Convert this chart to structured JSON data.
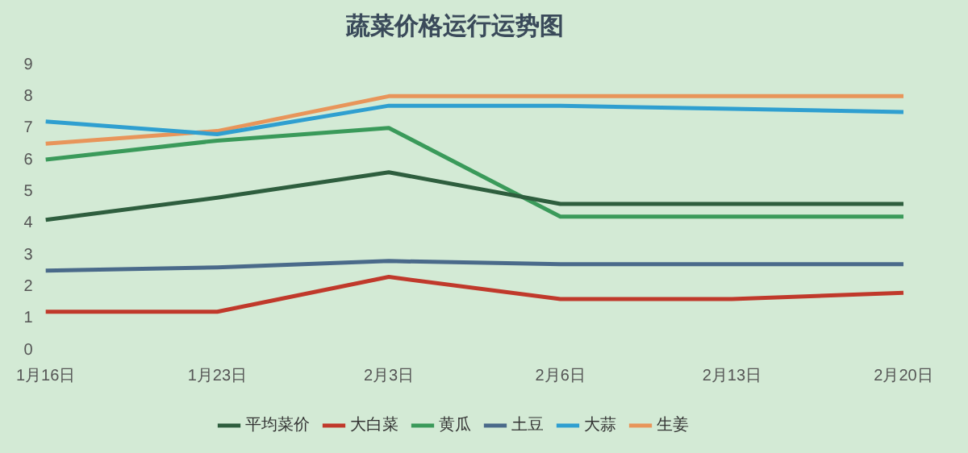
{
  "chart_data": {
    "type": "line",
    "title": "蔬菜价格运行运势图",
    "categories": [
      "1月16日",
      "1月23日",
      "2月3日",
      "2月6日",
      "2月13日",
      "2月20日"
    ],
    "series": [
      {
        "name": "平均菜价",
        "color": "#2e5e3e",
        "values": [
          4.1,
          4.8,
          5.6,
          4.6,
          4.6,
          4.6
        ]
      },
      {
        "name": "大白菜",
        "color": "#c0392b",
        "values": [
          1.2,
          1.2,
          2.3,
          1.6,
          1.6,
          1.8
        ]
      },
      {
        "name": "黄瓜",
        "color": "#3a9a5a",
        "values": [
          6.0,
          6.6,
          7.0,
          4.2,
          4.2,
          4.2
        ]
      },
      {
        "name": "土豆",
        "color": "#4a6a8a",
        "values": [
          2.5,
          2.6,
          2.8,
          2.7,
          2.7,
          2.7
        ]
      },
      {
        "name": "大蒜",
        "color": "#2f9fd0",
        "values": [
          7.2,
          6.8,
          7.7,
          7.7,
          7.6,
          7.5
        ]
      },
      {
        "name": "生姜",
        "color": "#e8955a",
        "values": [
          6.5,
          6.9,
          8.0,
          8.0,
          8.0,
          8.0
        ]
      }
    ],
    "ylim": [
      0,
      9
    ],
    "yticks": [
      0,
      1,
      2,
      3,
      4,
      5,
      6,
      7,
      8,
      9
    ],
    "grid": false,
    "legend": "bottom",
    "marker": "none",
    "line_style": "solid"
  }
}
